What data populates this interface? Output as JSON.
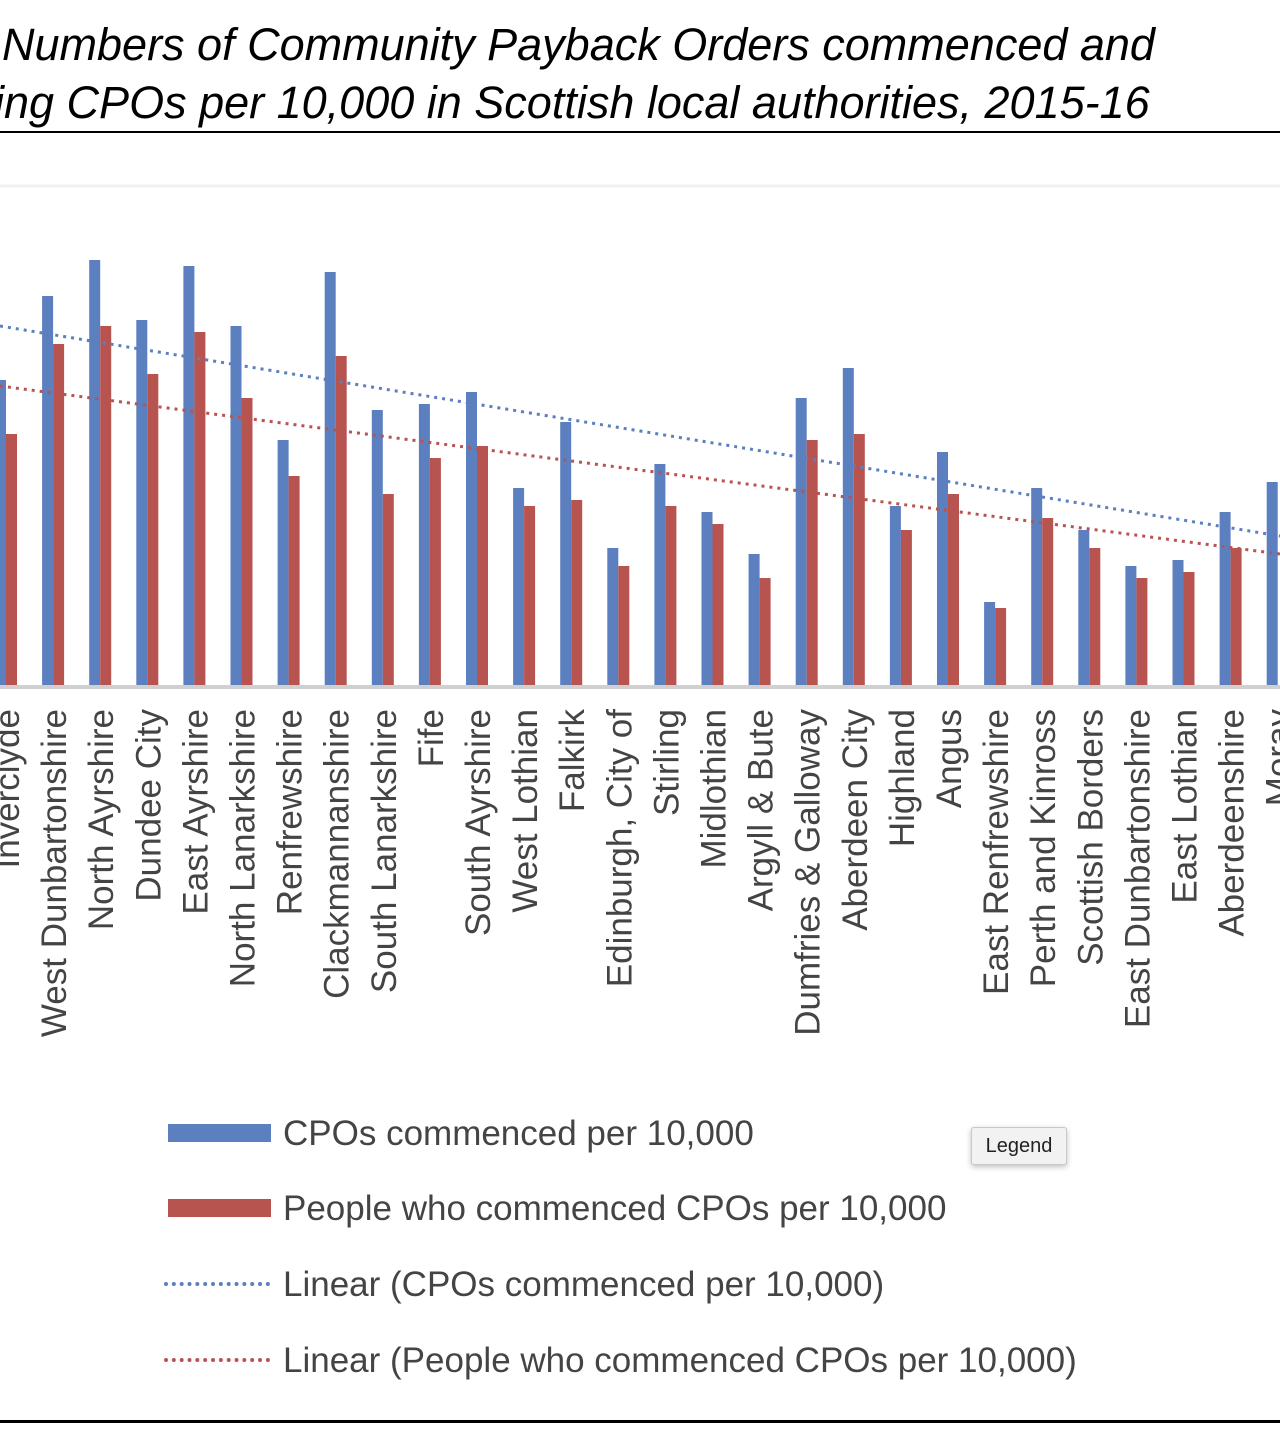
{
  "title": {
    "line1": "Numbers of Community Payback Orders commenced and",
    "line2": "ing CPOs per 10,000 in Scottish local authorities, 2015-16"
  },
  "chart_data": {
    "type": "bar",
    "categories": [
      "Inverclyde",
      "West Dunbartonshire",
      "North Ayrshire",
      "Dundee City",
      "East Ayrshire",
      "North Lanarkshire",
      "Renfrewshire",
      "Clackmannanshire",
      "South Lanarkshire",
      "Fife",
      "South Ayrshire",
      "West Lothian",
      "Falkirk",
      "Edinburgh, City of",
      "Stirling",
      "Midlothian",
      "Argyll & Bute",
      "Dumfries & Galloway",
      "Aberdeen City",
      "Highland",
      "Angus",
      "East Renfrewshire",
      "Perth and Kinross",
      "Scottish Borders",
      "East Dunbartonshire",
      "East Lothian",
      "Aberdeenshire",
      "Moray"
    ],
    "series": [
      {
        "name": "CPOs commenced per 10,000",
        "color": "#5b7fbf",
        "values": [
          51,
          65,
          71,
          61,
          70,
          60,
          41,
          69,
          46,
          47,
          49,
          33,
          44,
          23,
          37,
          29,
          22,
          48,
          53,
          30,
          39,
          14,
          33,
          26,
          20,
          21,
          29,
          34
        ]
      },
      {
        "name": "People who commenced CPOs per 10,000",
        "color": "#b85450",
        "values": [
          42,
          57,
          60,
          52,
          59,
          48,
          35,
          55,
          32,
          38,
          40,
          30,
          31,
          20,
          30,
          27,
          18,
          41,
          42,
          26,
          32,
          13,
          28,
          23,
          18,
          19,
          23,
          null
        ]
      }
    ],
    "trendlines": [
      {
        "name": "Linear  (CPOs commenced per 10,000)",
        "color": "#5b7fbf",
        "style": "dotted",
        "start": 60,
        "end": 25
      },
      {
        "name": "Linear  (People who commenced CPOs per 10,000)",
        "color": "#b85450",
        "style": "dotted",
        "start": 50,
        "end": 22
      }
    ],
    "ylim": [
      0,
      72
    ],
    "xlabel": "",
    "ylabel": "",
    "grid": false,
    "legend_position": "bottom"
  },
  "legend": {
    "tooltip": "Legend"
  }
}
